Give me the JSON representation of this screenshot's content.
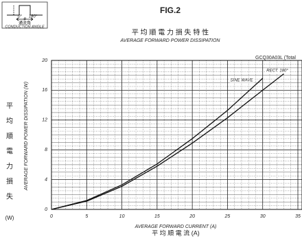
{
  "chart_data": {
    "type": "line",
    "title": "FIG.2",
    "subtitle_jp": "平 均 順 電 力 損 失 特 性",
    "subtitle": "AVERAGE FORWARD POWER DISSIPATION",
    "model": "GCQ30A03L (Total",
    "xlabel": "AVERAGE FORWARD CURRENT (A)",
    "xlabel_jp": "平 均 順 電 流 (A)",
    "ylabel": "AVERAGE FORWARD POWER DISSIPATION (W)",
    "ylabel_jp": [
      "平",
      "均",
      "順",
      "電",
      "力",
      "損",
      "失",
      "(W)"
    ],
    "inset": {
      "start": "0°",
      "end": "180°",
      "theta": "θ",
      "label_jp": "通流角",
      "label": "CONDUCTION ANGLE"
    },
    "x": [
      0,
      5,
      10,
      15,
      20,
      25,
      30,
      33
    ],
    "series": [
      {
        "name": "RECT. 180°",
        "color": "#111",
        "values": [
          0,
          1.1,
          3.1,
          5.8,
          8.9,
          12.3,
          16.0,
          18.2
        ]
      },
      {
        "name": "SINE WAVE",
        "color": "#111",
        "values": [
          0,
          1.2,
          3.3,
          6.1,
          9.5,
          13.3,
          17.6,
          null
        ]
      }
    ],
    "xlim": [
      0,
      35
    ],
    "xticks": [
      0,
      5,
      10,
      15,
      20,
      25,
      30,
      35
    ],
    "ylim": [
      0,
      20
    ],
    "yticks": [
      0,
      4,
      8,
      12,
      16,
      20
    ],
    "grid": true
  }
}
